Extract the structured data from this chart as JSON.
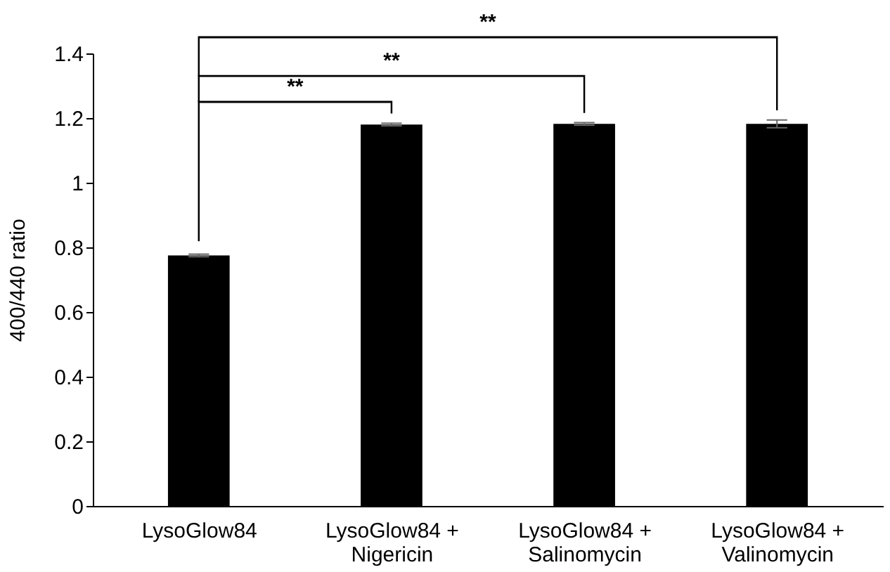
{
  "chart_data": {
    "type": "bar",
    "ylabel": "400/440 ratio",
    "categories": [
      "LysoGlow84",
      "LysoGlow84 + Nigericin",
      "LysoGlow84 + Salinomycin",
      "LysoGlow84 + Valinomycin"
    ],
    "values": [
      0.775,
      1.18,
      1.182,
      1.182
    ],
    "color": "#000000",
    "errors": [
      0.004,
      0.004,
      0.004,
      0.012
    ],
    "ylim": [
      0,
      1.4
    ],
    "yticks": [
      0,
      0.2,
      0.4,
      0.6,
      0.8,
      1,
      1.2,
      1.4
    ],
    "annotations": [
      "**",
      "**",
      "**"
    ]
  }
}
